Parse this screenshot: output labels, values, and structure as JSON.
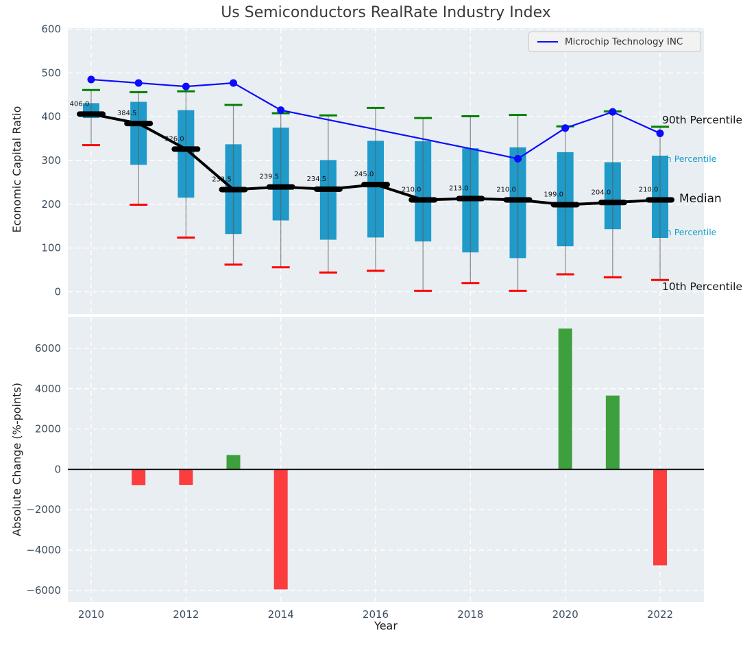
{
  "colors": {
    "plot_bg": "#e9eef2",
    "grid": "#ffffff",
    "tick": "#3e4e60",
    "box": "#1f9ac9",
    "whisker": "#5a5a5a",
    "cap_high": "#008000",
    "cap_low": "#fb0000",
    "median_line": "#000000",
    "microchip_line": "#0b0bff",
    "bar_up": "#3da03d",
    "bar_down": "#fb3d3d",
    "cyan_label": "#17a0ce",
    "label_text": "#111111"
  },
  "chart_data": [
    {
      "type": "boxplot+line",
      "title": "Us Semiconductors RealRate Industry Index",
      "ylabel": "Economic Capital Ratio",
      "legend_label": "Microchip Technology INC",
      "years": [
        2010,
        2011,
        2012,
        2013,
        2014,
        2015,
        2016,
        2017,
        2018,
        2019,
        2020,
        2021,
        2022
      ],
      "p90": [
        461,
        456,
        458,
        427,
        408,
        403,
        420,
        397,
        401,
        404,
        378,
        412,
        377
      ],
      "p75": [
        431,
        434,
        415,
        337,
        375,
        301,
        345,
        344,
        328,
        330,
        319,
        296,
        311
      ],
      "median": [
        406.0,
        384.5,
        326.0,
        233.5,
        239.5,
        234.5,
        245.0,
        210.0,
        213.0,
        210.0,
        199.0,
        204.0,
        210.0
      ],
      "p25": [
        397,
        290,
        215,
        132,
        163,
        119,
        124,
        115,
        90,
        77,
        104,
        143,
        123
      ],
      "p10": [
        335,
        199,
        124,
        62,
        56,
        44,
        48,
        2,
        20,
        2,
        40,
        33,
        27
      ],
      "microchip": [
        485,
        477,
        469,
        477,
        415,
        393,
        371,
        349,
        327,
        304,
        374,
        411,
        362
      ],
      "microchip_markers": [
        true,
        true,
        true,
        true,
        true,
        false,
        false,
        false,
        false,
        true,
        true,
        true,
        true
      ],
      "median_labels": [
        "406.0",
        "384.5",
        "326.0",
        "233.5",
        "239.5",
        "234.5",
        "245.0",
        "210.0",
        "213.0",
        "210.0",
        "199.0",
        "204.0",
        "210.0"
      ],
      "percentile_labels": {
        "p90": "90th Percentile",
        "p75": "75th Percentile",
        "median": "Median",
        "p25": "25th Percentile",
        "p10": "10th Percentile"
      },
      "yticks": [
        600,
        500,
        400,
        300,
        200,
        100,
        0
      ],
      "ylim": [
        -52,
        602
      ],
      "grid": "dashed-white"
    },
    {
      "type": "bar",
      "ylabel": "Absolute Change (%-points)",
      "xlabel": "Year",
      "years": [
        2010,
        2011,
        2012,
        2013,
        2014,
        2015,
        2016,
        2017,
        2018,
        2019,
        2020,
        2021,
        2022
      ],
      "values": [
        0,
        -780,
        -770,
        710,
        -5950,
        0,
        0,
        0,
        0,
        0,
        6980,
        3660,
        -4760
      ],
      "yticks": [
        6000,
        4000,
        2000,
        0,
        -2000,
        -4000,
        -6000
      ],
      "xticks": [
        "2010",
        "2012",
        "2014",
        "2016",
        "2018",
        "2020",
        "2022"
      ],
      "ylim": [
        -7500,
        7500
      ],
      "zero_line": true
    }
  ]
}
